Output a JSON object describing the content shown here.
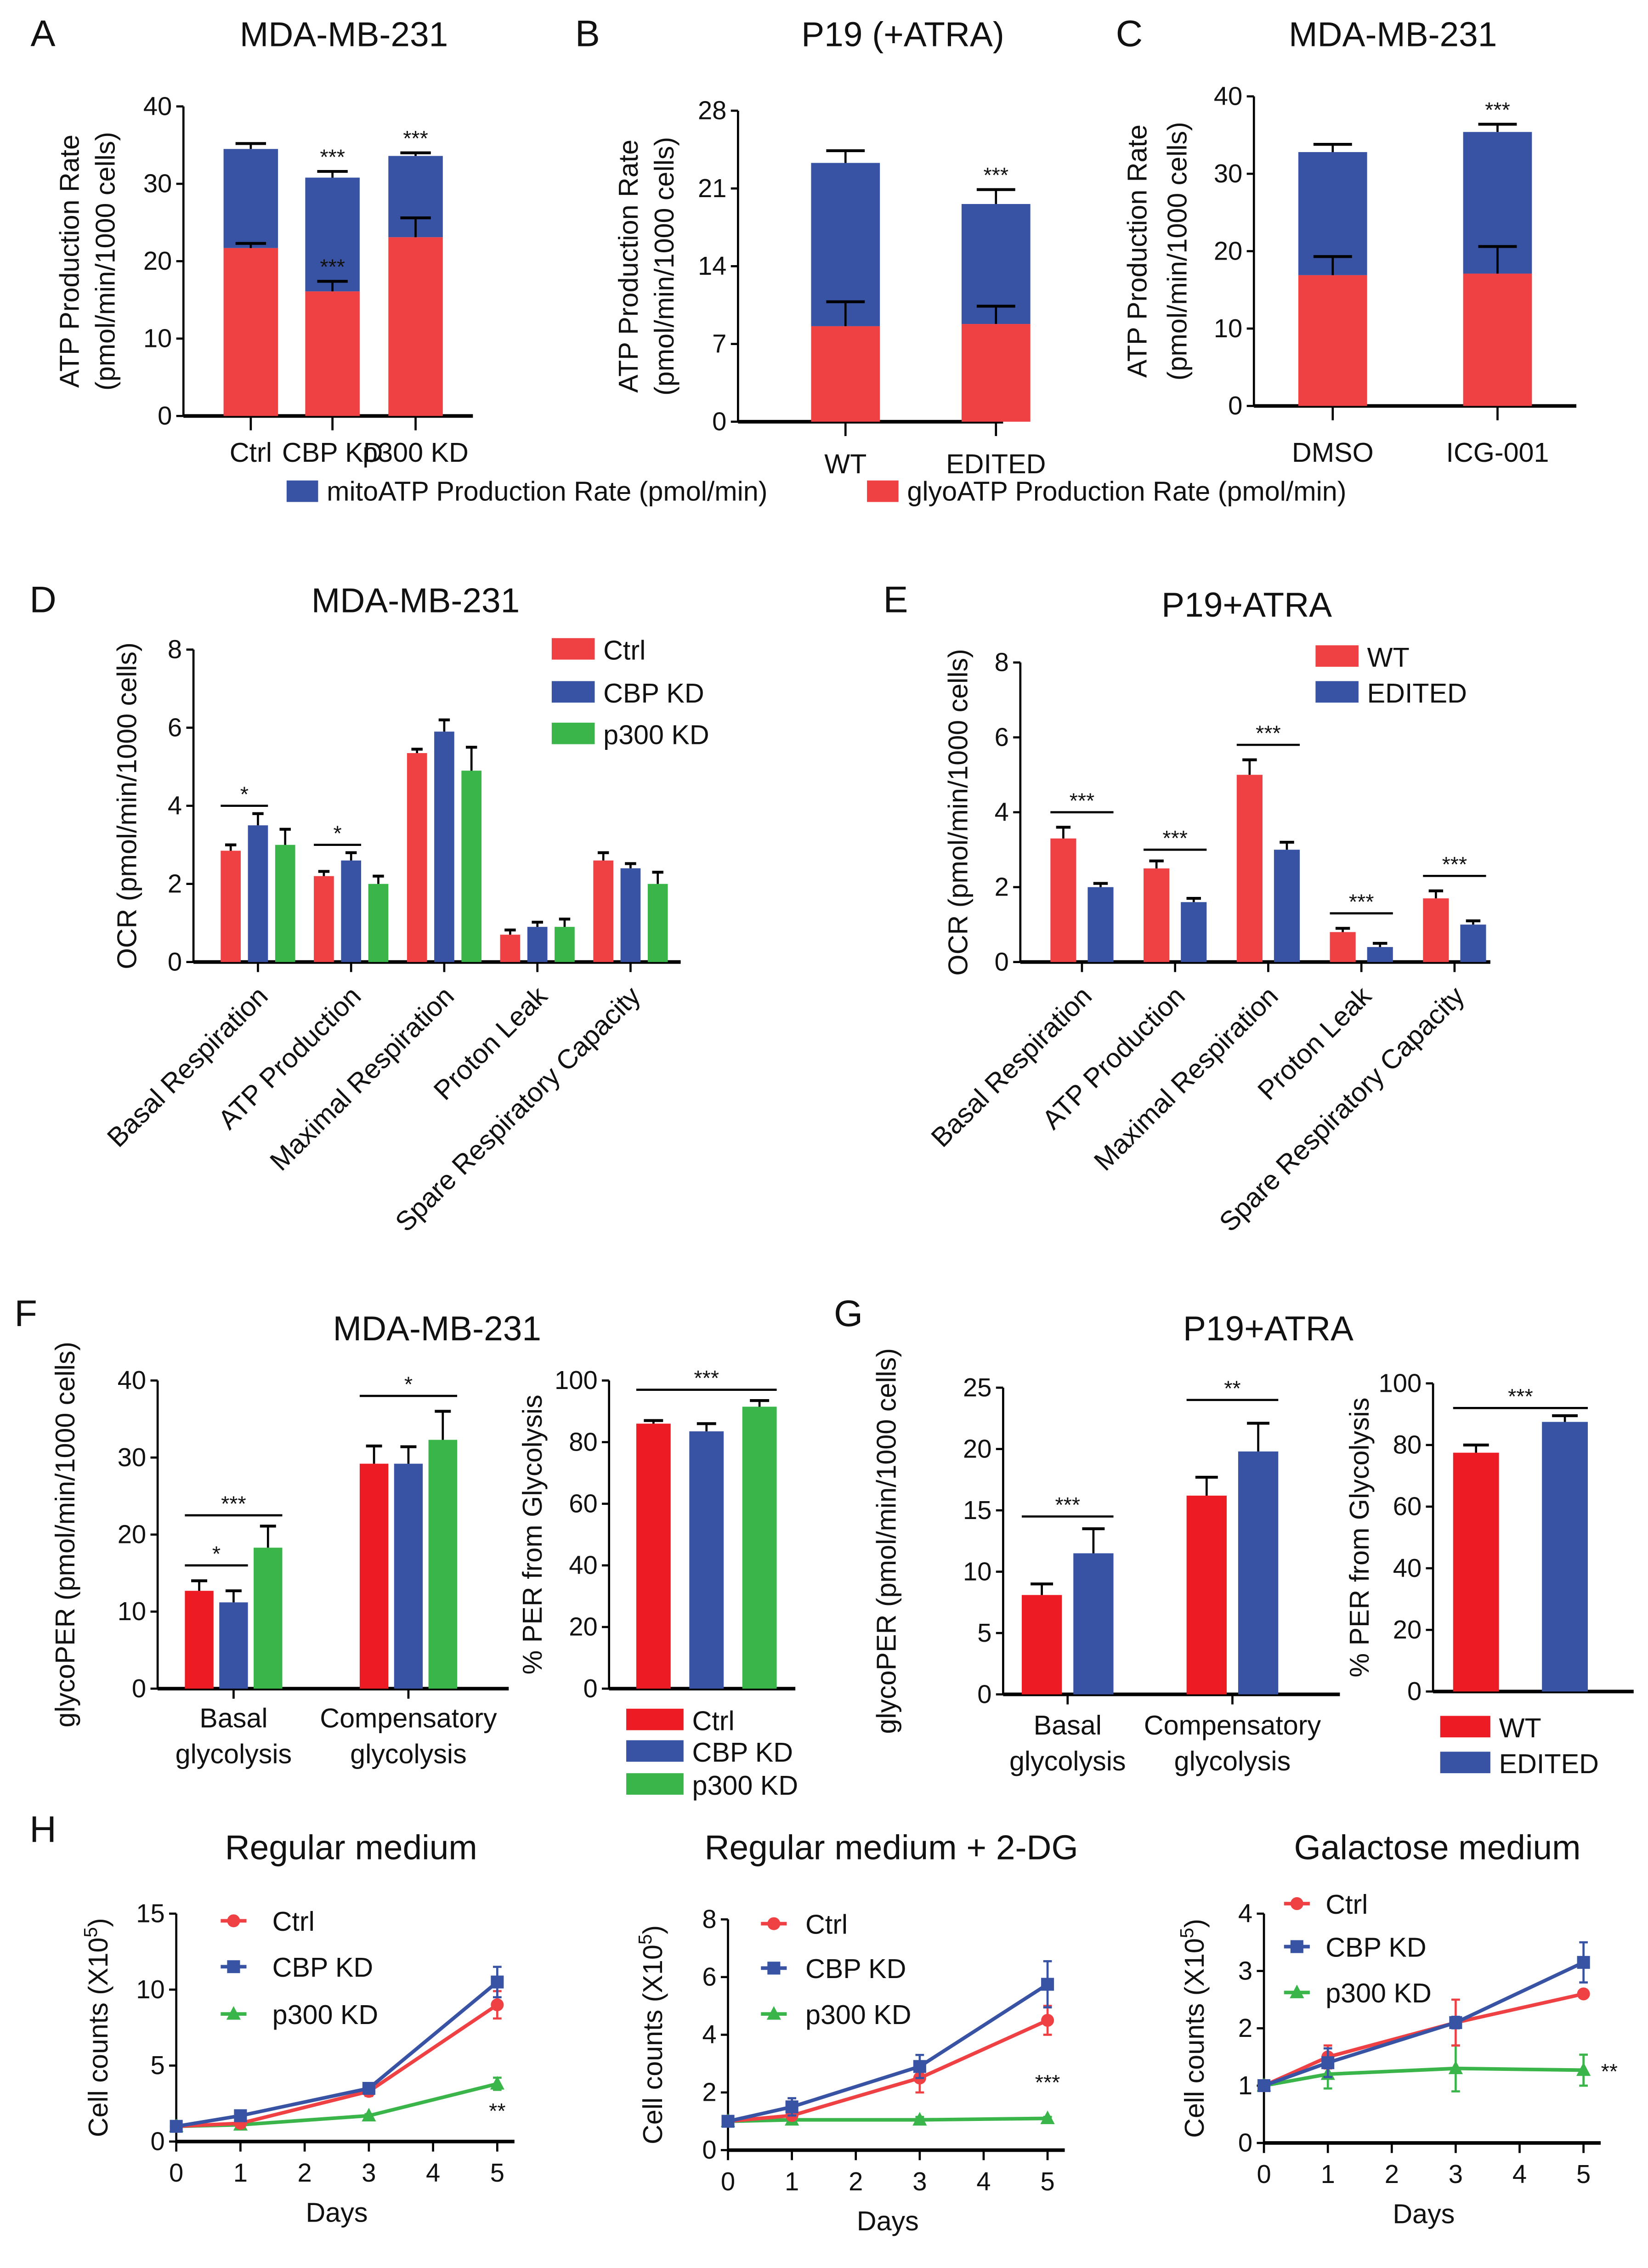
{
  "colors": {
    "red": "#ef4044",
    "red_fg": "#ed1c24",
    "blue": "#3953a4",
    "green": "#39b54a"
  },
  "chart_data": [
    {
      "letter": "A",
      "title": "MDA-MB-231",
      "type": "bar",
      "stacked": true,
      "categories": [
        "Ctrl",
        "CBP KD",
        "p300 KD"
      ],
      "series": [
        {
          "name": "glyoATP Production Rate (pmol/min)",
          "color": "#ef4044",
          "values": [
            21.7,
            16.1,
            23.1
          ],
          "errors": [
            0.6,
            1.3,
            2.5
          ]
        },
        {
          "name": "mitoATP Production Rate (pmol/min)",
          "color": "#3953a4",
          "values": [
            12.8,
            14.7,
            10.5
          ],
          "errors": [
            0.7,
            0.8,
            0.4
          ]
        }
      ],
      "ylim": [
        0,
        40
      ],
      "yticks": [
        "0",
        "10",
        "20",
        "30",
        "40"
      ],
      "ylabel": [
        "ATP Production Rate",
        "(pmol/min/1000 cells)"
      ],
      "significance": [
        {
          "group": 1,
          "series": 1,
          "text": "***"
        },
        {
          "group": 1,
          "series": 0,
          "text": "***"
        },
        {
          "group": 2,
          "series": 1,
          "text": "***"
        }
      ]
    },
    {
      "letter": "B",
      "title": "P19 (+ATRA)",
      "type": "bar",
      "stacked": true,
      "categories": [
        "WT",
        "EDITED"
      ],
      "series": [
        {
          "name": "glyoATP Production Rate (pmol/min)",
          "color": "#ef4044",
          "values": [
            8.6,
            8.8
          ],
          "errors": [
            2.2,
            1.6
          ]
        },
        {
          "name": "mitoATP Production Rate (pmol/min)",
          "color": "#3953a4",
          "values": [
            14.7,
            10.8
          ],
          "errors": [
            1.1,
            1.3
          ]
        }
      ],
      "ylim": [
        0,
        28
      ],
      "yticks": [
        "0",
        "7",
        "14",
        "21",
        "28"
      ],
      "ylabel": [
        "ATP Production Rate",
        "(pmol/min/1000 cells)"
      ],
      "significance": [
        {
          "group": 1,
          "series": 1,
          "text": "***"
        }
      ],
      "legend": [
        {
          "label": "mitoATP Production Rate (pmol/min)",
          "color": "#3953a4"
        },
        {
          "label": "glyoATP Production Rate (pmol/min)",
          "color": "#ef4044"
        }
      ],
      "legend_placement": "bottom"
    },
    {
      "letter": "C",
      "title": "MDA-MB-231",
      "type": "bar",
      "stacked": true,
      "categories": [
        "DMSO",
        "ICG-001"
      ],
      "series": [
        {
          "name": "glyoATP Production Rate (pmol/min)",
          "color": "#ef4044",
          "values": [
            16.9,
            17.1
          ],
          "errors": [
            2.4,
            3.5
          ]
        },
        {
          "name": "mitoATP Production Rate (pmol/min)",
          "color": "#3953a4",
          "values": [
            15.9,
            18.3
          ],
          "errors": [
            1.0,
            1.0
          ]
        }
      ],
      "ylim": [
        0,
        40
      ],
      "yticks": [
        "0",
        "10",
        "20",
        "30",
        "40"
      ],
      "ylabel": [
        "ATP Production Rate",
        "(pmol/min/1000 cells)"
      ],
      "significance": [
        {
          "group": 1,
          "series": 1,
          "text": "***"
        }
      ]
    },
    {
      "letter": "D",
      "title": "MDA-MB-231",
      "type": "bar",
      "categories": [
        "Basal Respiration",
        "ATP Production",
        "Maximal Respiration",
        "Proton Leak",
        "Spare Respiratory Capacity"
      ],
      "series": [
        {
          "name": "Ctrl",
          "color": "#ef4044",
          "values": [
            2.85,
            2.2,
            5.35,
            0.7,
            2.6
          ],
          "errors": [
            0.15,
            0.12,
            0.1,
            0.12,
            0.2
          ]
        },
        {
          "name": "CBP KD",
          "color": "#3953a4",
          "values": [
            3.5,
            2.6,
            5.9,
            0.9,
            2.4
          ],
          "errors": [
            0.3,
            0.2,
            0.3,
            0.12,
            0.12
          ]
        },
        {
          "name": "p300 KD",
          "color": "#39b54a",
          "values": [
            3.0,
            2.0,
            4.9,
            0.9,
            2.0
          ],
          "errors": [
            0.4,
            0.2,
            0.6,
            0.2,
            0.3
          ]
        }
      ],
      "ylim": [
        0,
        8
      ],
      "yticks": [
        "0",
        "2",
        "4",
        "6",
        "8"
      ],
      "ylabel": [
        "OCR (pmol/min/1000 cells)"
      ],
      "significance": [
        {
          "group": 0,
          "from": 0,
          "to": 1,
          "level": 4.0,
          "text": "*"
        },
        {
          "group": 1,
          "from": 0,
          "to": 1,
          "level": 3.0,
          "text": "*"
        }
      ],
      "legend": [
        {
          "label": "Ctrl",
          "color": "#ef4044"
        },
        {
          "label": "CBP KD",
          "color": "#3953a4"
        },
        {
          "label": "p300 KD",
          "color": "#39b54a"
        }
      ],
      "legend_placement": "top-right"
    },
    {
      "letter": "E",
      "title": "P19+ATRA",
      "type": "bar",
      "categories": [
        "Basal Respiration",
        "ATP Production",
        "Maximal Respiration",
        "Proton Leak",
        "Spare Respiratory Capacity"
      ],
      "series": [
        {
          "name": "WT",
          "color": "#ef4044",
          "values": [
            3.3,
            2.5,
            5.0,
            0.8,
            1.7
          ],
          "errors": [
            0.3,
            0.2,
            0.4,
            0.1,
            0.2
          ]
        },
        {
          "name": "EDITED",
          "color": "#3953a4",
          "values": [
            2.0,
            1.6,
            3.0,
            0.4,
            1.0
          ],
          "errors": [
            0.1,
            0.1,
            0.2,
            0.1,
            0.1
          ]
        }
      ],
      "ylim": [
        0,
        8
      ],
      "yticks": [
        "0",
        "2",
        "4",
        "6",
        "8"
      ],
      "ylabel": [
        "OCR (pmol/min/1000 cells)"
      ],
      "significance": [
        {
          "group": 0,
          "from": 0,
          "to": 1,
          "level": 4.0,
          "text": "***"
        },
        {
          "group": 1,
          "from": 0,
          "to": 1,
          "level": 3.0,
          "text": "***"
        },
        {
          "group": 2,
          "from": 0,
          "to": 1,
          "level": 5.8,
          "text": "***"
        },
        {
          "group": 3,
          "from": 0,
          "to": 1,
          "level": 1.3,
          "text": "***"
        },
        {
          "group": 4,
          "from": 0,
          "to": 1,
          "level": 2.3,
          "text": "***"
        }
      ],
      "legend": [
        {
          "label": "WT",
          "color": "#ef4044"
        },
        {
          "label": "EDITED",
          "color": "#3953a4"
        }
      ],
      "legend_placement": "top-right"
    },
    {
      "letter": "F",
      "title": "MDA-MB-231",
      "type": "bar",
      "categories": [
        [
          "Basal",
          "glycolysis"
        ],
        [
          "Compensatory",
          "glycolysis"
        ]
      ],
      "series": [
        {
          "name": "Ctrl",
          "color": "#ed1c24",
          "values": [
            12.7,
            29.2
          ],
          "errors": [
            1.3,
            2.3
          ]
        },
        {
          "name": "CBP KD",
          "color": "#3953a4",
          "values": [
            11.2,
            29.2
          ],
          "errors": [
            1.5,
            2.2
          ]
        },
        {
          "name": "p300 KD",
          "color": "#39b54a",
          "values": [
            18.3,
            32.3
          ],
          "errors": [
            2.8,
            3.7
          ]
        }
      ],
      "ylim": [
        0,
        40
      ],
      "yticks": [
        "0",
        "10",
        "20",
        "30",
        "40"
      ],
      "ylabel": [
        "glycoPER (pmol/min/1000 cells)"
      ],
      "significance": [
        {
          "group": 0,
          "from": 0,
          "to": 1,
          "level": 16,
          "text": "*"
        },
        {
          "group": 0,
          "from": 0,
          "to": 2,
          "level": 22.5,
          "text": "***"
        },
        {
          "group": 1,
          "from": 0,
          "to": 2,
          "level": 38,
          "text": "*"
        }
      ]
    },
    {
      "type": "bar",
      "series": [
        {
          "name": "% PER from Glycolysis",
          "values": [
            86,
            83.5,
            91.5
          ],
          "errors": [
            1,
            2.5,
            2
          ],
          "colors": [
            "#ed1c24",
            "#3953a4",
            "#39b54a"
          ]
        }
      ],
      "ylim": [
        0,
        100
      ],
      "yticks": [
        "0",
        "20",
        "40",
        "60",
        "80",
        "100"
      ],
      "ylabel": [
        "% PER from Glycolysis"
      ],
      "significance": [
        {
          "from": 0,
          "to": 2,
          "level": 97,
          "text": "***"
        }
      ],
      "legend": [
        {
          "label": "Ctrl",
          "color": "#ed1c24"
        },
        {
          "label": "CBP KD",
          "color": "#3953a4"
        },
        {
          "label": "p300 KD",
          "color": "#39b54a"
        }
      ],
      "legend_placement": "bottom"
    },
    {
      "letter": "G",
      "title": "P19+ATRA",
      "type": "bar",
      "categories": [
        [
          "Basal",
          "glycolysis"
        ],
        [
          "Compensatory",
          "glycolysis"
        ]
      ],
      "series": [
        {
          "name": "WT",
          "color": "#ed1c24",
          "values": [
            8.1,
            16.2
          ],
          "errors": [
            0.9,
            1.5
          ]
        },
        {
          "name": "EDITED",
          "color": "#3953a4",
          "values": [
            11.5,
            19.8
          ],
          "errors": [
            2.0,
            2.3
          ]
        }
      ],
      "ylim": [
        0,
        25
      ],
      "yticks": [
        "0",
        "5",
        "10",
        "15",
        "20",
        "25"
      ],
      "ylabel": [
        "glycoPER (pmol/min/1000 cells)"
      ],
      "significance": [
        {
          "group": 0,
          "from": 0,
          "to": 1,
          "level": 14.5,
          "text": "***"
        },
        {
          "group": 1,
          "from": 0,
          "to": 1,
          "level": 24,
          "text": "**"
        }
      ]
    },
    {
      "type": "bar",
      "series": [
        {
          "name": "% PER from Glycolysis",
          "values": [
            77.5,
            87.5
          ],
          "errors": [
            2.5,
            2
          ],
          "colors": [
            "#ed1c24",
            "#3953a4"
          ]
        }
      ],
      "ylim": [
        0,
        100
      ],
      "yticks": [
        "0",
        "20",
        "40",
        "60",
        "80",
        "100"
      ],
      "ylabel": [
        "% PER from Glycolysis"
      ],
      "significance": [
        {
          "from": 0,
          "to": 1,
          "level": 92,
          "text": "***"
        }
      ],
      "legend": [
        {
          "label": "WT",
          "color": "#ed1c24"
        },
        {
          "label": "EDITED",
          "color": "#3953a4"
        }
      ],
      "legend_placement": "bottom"
    },
    {
      "letter": "H",
      "title": "Regular medium",
      "type": "line",
      "x": [
        0,
        1,
        3,
        5
      ],
      "xlim": [
        0,
        5
      ],
      "xticks": [
        "0",
        "1",
        "2",
        "3",
        "4",
        "5"
      ],
      "xlabel": "Days",
      "ylim": [
        0,
        15
      ],
      "yticks": [
        "0",
        "5",
        "10",
        "15"
      ],
      "ylabel": [
        "Cell counts (X10",
        "5",
        ")"
      ],
      "series": [
        {
          "name": "Ctrl",
          "color": "#ef4044",
          "marker": "circle",
          "values": [
            1,
            1.2,
            3.3,
            9.0
          ],
          "errors": [
            0.2,
            0.2,
            0.3,
            0.9
          ]
        },
        {
          "name": "CBP KD",
          "color": "#3953a4",
          "marker": "square",
          "values": [
            1,
            1.7,
            3.5,
            10.5
          ],
          "errors": [
            0.1,
            0.2,
            0.2,
            1.0
          ]
        },
        {
          "name": "p300 KD",
          "color": "#39b54a",
          "marker": "triangle",
          "values": [
            1,
            1.1,
            1.7,
            3.8
          ],
          "errors": [
            0.1,
            0.1,
            0.1,
            0.4
          ]
        }
      ],
      "significance": [
        {
          "series": 2,
          "x": 5,
          "text": "**"
        }
      ],
      "legend_placement": "top-left"
    },
    {
      "title": "Regular medium + 2-DG",
      "type": "line",
      "x": [
        0,
        1,
        3,
        5
      ],
      "xlim": [
        0,
        5
      ],
      "xticks": [
        "0",
        "1",
        "2",
        "3",
        "4",
        "5"
      ],
      "xlabel": "Days",
      "ylim": [
        0,
        8
      ],
      "yticks": [
        "0",
        "2",
        "4",
        "6",
        "8"
      ],
      "ylabel": [
        "Cell counts (X10",
        "5",
        ")"
      ],
      "series": [
        {
          "name": "Ctrl",
          "color": "#ef4044",
          "marker": "circle",
          "values": [
            1,
            1.2,
            2.5,
            4.5
          ],
          "errors": [
            0.1,
            0.1,
            0.5,
            0.5
          ]
        },
        {
          "name": "CBP KD",
          "color": "#3953a4",
          "marker": "square",
          "values": [
            1,
            1.5,
            2.9,
            5.75
          ],
          "errors": [
            0.1,
            0.3,
            0.4,
            0.8
          ]
        },
        {
          "name": "p300 KD",
          "color": "#39b54a",
          "marker": "triangle",
          "values": [
            1,
            1.05,
            1.05,
            1.1
          ],
          "errors": [
            0.05,
            0.1,
            0.1,
            0.05
          ]
        }
      ],
      "significance": [
        {
          "series": 2,
          "x": 5,
          "text": "***"
        }
      ],
      "legend_placement": "top-left"
    },
    {
      "title": "Galactose medium",
      "type": "line",
      "x": [
        0,
        1,
        3,
        5
      ],
      "xlim": [
        0,
        5
      ],
      "xticks": [
        "0",
        "1",
        "2",
        "3",
        "4",
        "5"
      ],
      "xlabel": "Days",
      "ylim": [
        0,
        4
      ],
      "yticks": [
        "0",
        "1",
        "2",
        "3",
        "4"
      ],
      "ylabel": [
        "Cell counts (X10",
        "5",
        ")"
      ],
      "series": [
        {
          "name": "Ctrl",
          "color": "#ef4044",
          "marker": "circle",
          "values": [
            1,
            1.5,
            2.1,
            2.6
          ],
          "errors": [
            0.05,
            0.2,
            0.4,
            0.05
          ]
        },
        {
          "name": "CBP KD",
          "color": "#3953a4",
          "marker": "square",
          "values": [
            1,
            1.4,
            2.1,
            3.15
          ],
          "errors": [
            0.05,
            0.25,
            0.1,
            0.35
          ]
        },
        {
          "name": "p300 KD",
          "color": "#39b54a",
          "marker": "triangle",
          "values": [
            1,
            1.2,
            1.3,
            1.27
          ],
          "errors": [
            0.05,
            0.25,
            0.4,
            0.27
          ]
        }
      ],
      "significance": [
        {
          "series": 2,
          "x": 5,
          "text": "**"
        }
      ],
      "legend_placement": "top-left"
    }
  ]
}
